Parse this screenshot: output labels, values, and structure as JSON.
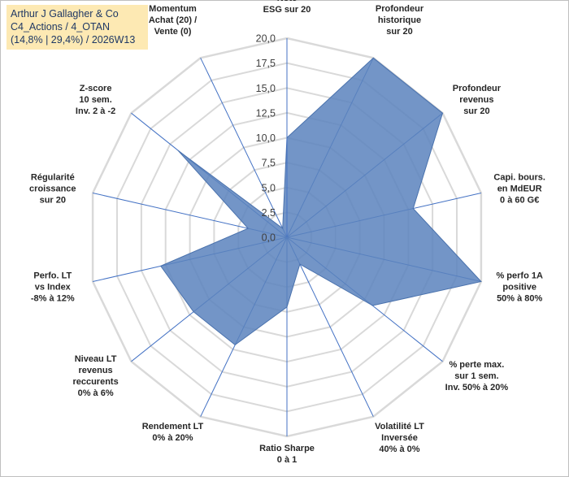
{
  "title": {
    "line1": "Arthur J Gallagher & Co",
    "line2": "C4_Actions / 4_OTAN",
    "line3": "(14,8% | 29,4%) / 2026W13"
  },
  "colors": {
    "fill": "#5b83bd",
    "fill_stroke": "#4a72ad",
    "grid": "#d9d9d9",
    "spoke": "#4472c4",
    "background": "#ffffff",
    "title_background": "#fde9b3"
  },
  "chart_data": {
    "type": "radar",
    "rmin": 0,
    "rmax": 20,
    "tick_step": 2.5,
    "tick_labels": [
      "0,0",
      "2,5",
      "5,0",
      "7,5",
      "10,0",
      "12,5",
      "15,0",
      "17,5",
      "20,0"
    ],
    "axes": [
      {
        "label": [
          "Note",
          "ESG sur 20"
        ],
        "value": 10
      },
      {
        "label": [
          "Profondeur",
          "historique",
          "sur 20"
        ],
        "value": 20
      },
      {
        "label": [
          "Profondeur",
          "revenus",
          "sur 20"
        ],
        "value": 20
      },
      {
        "label": [
          "Capi. bours.",
          "en MdEUR",
          "0 à 60 G€"
        ],
        "value": 13
      },
      {
        "label": [
          "% perfo 1A",
          "positive",
          "50% à 80%"
        ],
        "value": 20
      },
      {
        "label": [
          "% perte max.",
          "sur 1 sem.",
          "Inv. 50% à 20%"
        ],
        "value": 11
      },
      {
        "label": [
          "Volatilité LT",
          "Inversée",
          "40% à 0%"
        ],
        "value": 3
      },
      {
        "label": [
          "Ratio Sharpe",
          "0 à 1"
        ],
        "value": 7
      },
      {
        "label": [
          "Rendement LT",
          "0% à 20%"
        ],
        "value": 12
      },
      {
        "label": [
          "Niveau LT",
          "revenus",
          "reccurents",
          "0% à 6%"
        ],
        "value": 12
      },
      {
        "label": [
          "Perfo. LT",
          "vs Index",
          "-8% à 12%"
        ],
        "value": 13
      },
      {
        "label": [
          "Régularité",
          "croissance",
          "sur 20"
        ],
        "value": 4
      },
      {
        "label": [
          "Z-score",
          "10 sem.",
          "Inv. 2 à -2"
        ],
        "value": 14
      },
      {
        "label": [
          "Momentum",
          "Achat (20) /",
          "Vente (0)"
        ],
        "value": 1
      }
    ]
  }
}
